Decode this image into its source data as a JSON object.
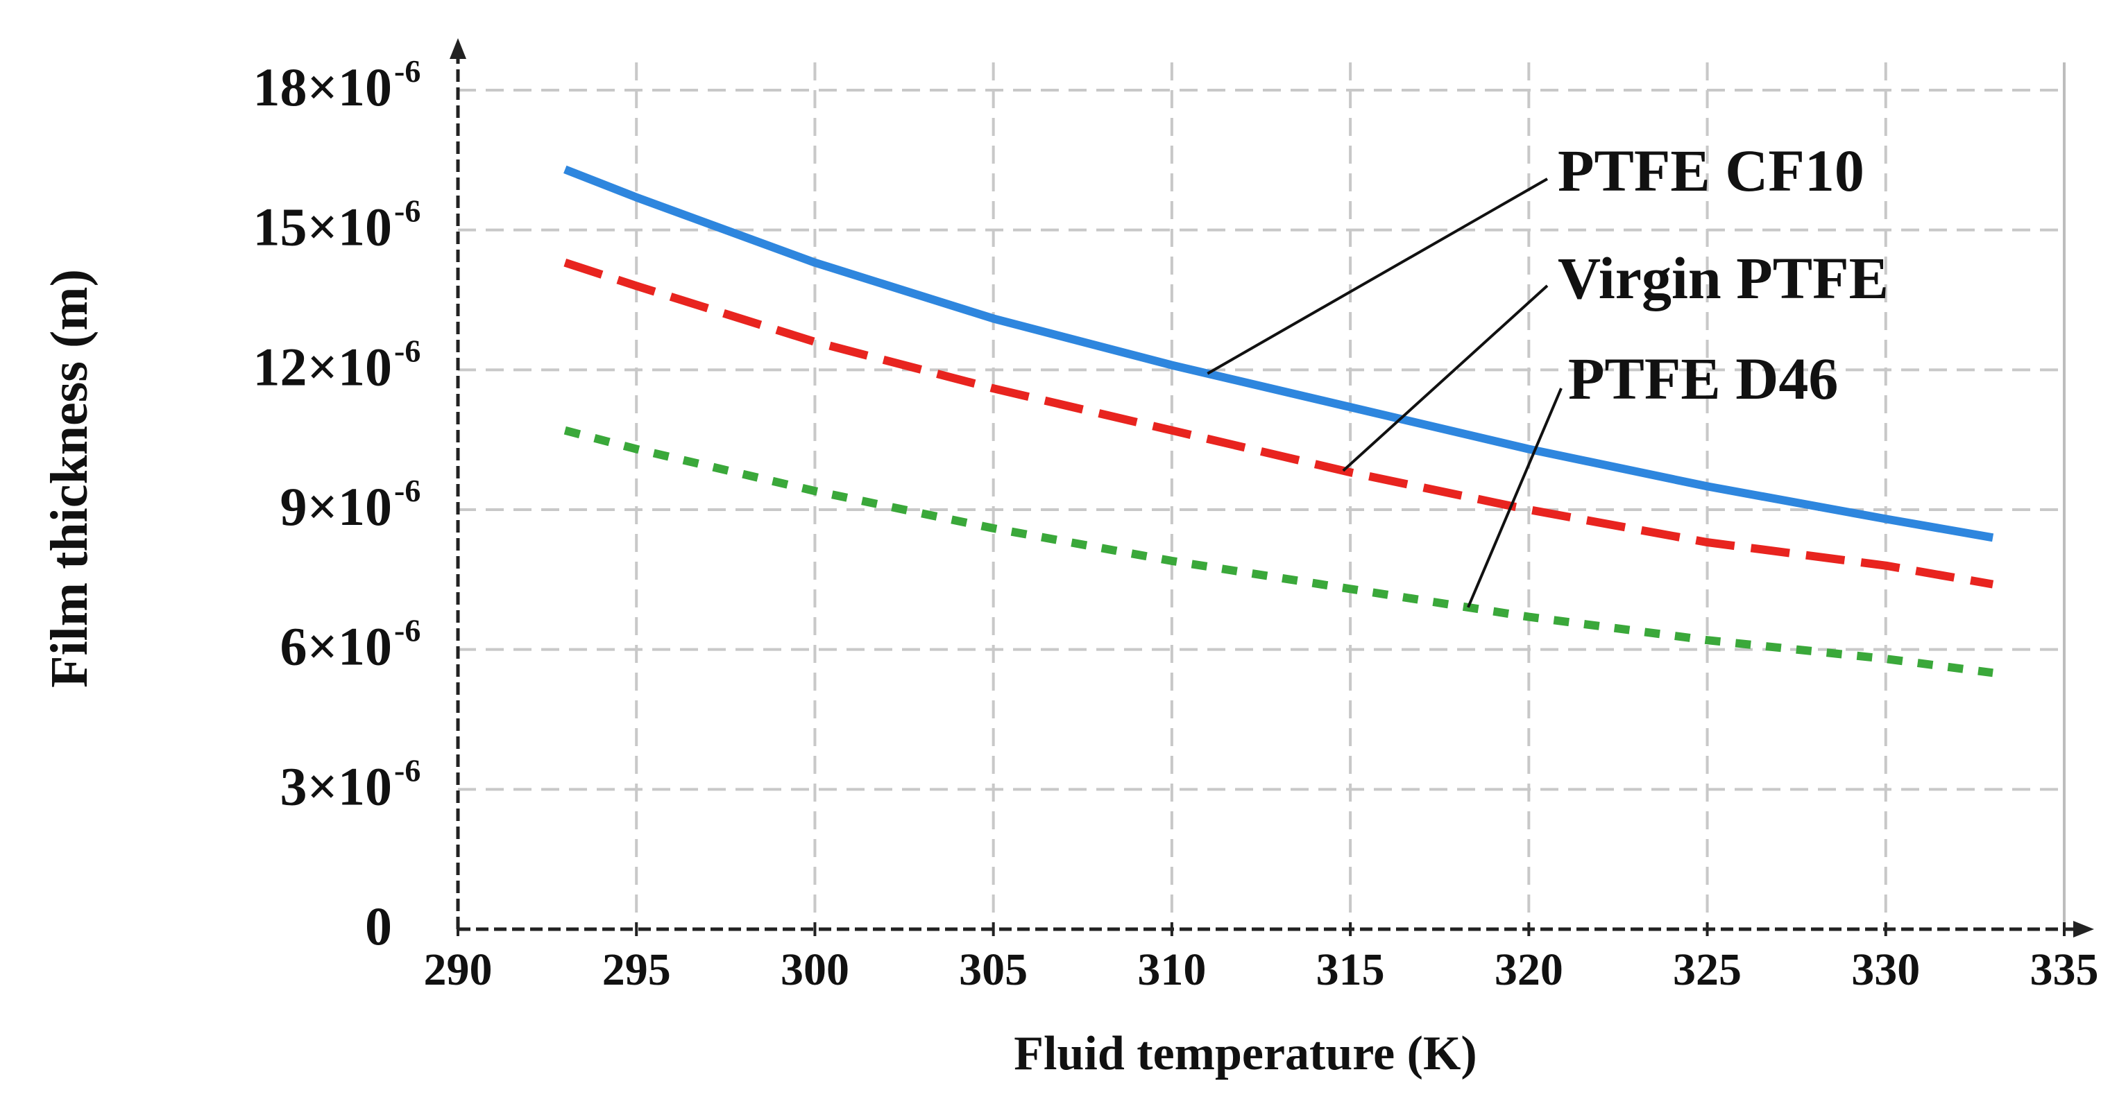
{
  "chart_data": {
    "type": "line",
    "title": "",
    "xlabel": "Fluid temperature (K)",
    "ylabel": "Film thickness (m)",
    "xlim": [
      290,
      335
    ],
    "ylim": [
      0,
      1.8e-05
    ],
    "grid": true,
    "x_ticks": [
      {
        "value": 290,
        "label": "290"
      },
      {
        "value": 295,
        "label": "295"
      },
      {
        "value": 300,
        "label": "300"
      },
      {
        "value": 305,
        "label": "305"
      },
      {
        "value": 310,
        "label": "310"
      },
      {
        "value": 315,
        "label": "315"
      },
      {
        "value": 320,
        "label": "320"
      },
      {
        "value": 325,
        "label": "325"
      },
      {
        "value": 330,
        "label": "330"
      },
      {
        "value": 335,
        "label": "335"
      }
    ],
    "y_ticks": [
      {
        "value": 0,
        "mantissa": "0",
        "exponent": ""
      },
      {
        "value": 3,
        "mantissa": "3×10",
        "exponent": "-6"
      },
      {
        "value": 6,
        "mantissa": "6×10",
        "exponent": "-6"
      },
      {
        "value": 9,
        "mantissa": "9×10",
        "exponent": "-6"
      },
      {
        "value": 12,
        "mantissa": "12×10",
        "exponent": "-6"
      },
      {
        "value": 15,
        "mantissa": "15×10",
        "exponent": "-6"
      },
      {
        "value": 18,
        "mantissa": "18×10",
        "exponent": "-6"
      }
    ],
    "series_unit_scale": "values in micrometres (×10^-6 m)",
    "x": [
      293,
      295,
      300,
      305,
      310,
      315,
      320,
      325,
      330,
      333
    ],
    "series": [
      {
        "name": "PTFE CF10",
        "color": "#2e86de",
        "style": "solid",
        "values": [
          16.3,
          15.7,
          14.3,
          13.1,
          12.1,
          11.2,
          10.3,
          9.5,
          8.8,
          8.4
        ]
      },
      {
        "name": "Virgin PTFE",
        "color": "#e8241f",
        "style": "dashed",
        "values": [
          14.3,
          13.8,
          12.6,
          11.6,
          10.7,
          9.8,
          9.0,
          8.3,
          7.8,
          7.4
        ]
      },
      {
        "name": "PTFE D46",
        "color": "#3aa83a",
        "style": "dotted",
        "values": [
          10.7,
          10.3,
          9.4,
          8.6,
          7.9,
          7.3,
          6.7,
          6.2,
          5.8,
          5.5
        ]
      }
    ],
    "annotations": [
      {
        "text": "PTFE CF10",
        "series": "PTFE CF10",
        "point_x": 311
      },
      {
        "text": "Virgin PTFE",
        "series": "Virgin PTFE",
        "point_x": 314.8
      },
      {
        "text": "PTFE D46",
        "series": "PTFE D46",
        "point_x": 318.3
      }
    ]
  }
}
